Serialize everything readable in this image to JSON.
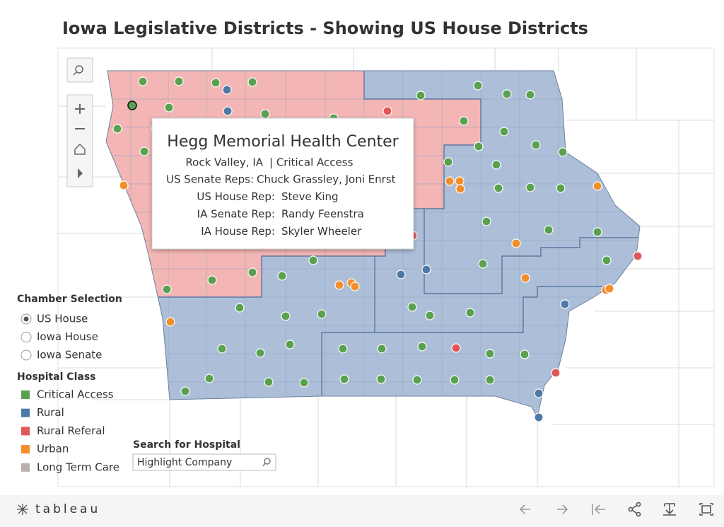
{
  "title": "Iowa Legislative Districts - Showing US House Districts",
  "tooltip": {
    "name": "Hegg Memorial Health Center",
    "location": "Rock Valley, IA",
    "class": "| Critical Access",
    "rows": [
      {
        "label": "US Senate Reps:",
        "value": "Chuck Grassley, Joni Enrst"
      },
      {
        "label": "US House Rep:",
        "value": "Steve King"
      },
      {
        "label": "IA Senate Rep:",
        "value": "Randy Feenstra"
      },
      {
        "label": "IA House Rep:",
        "value": "Skyler Wheeler"
      }
    ]
  },
  "chamber_selection": {
    "title": "Chamber Selection",
    "options": [
      "US House",
      "Iowa House",
      "Iowa Senate"
    ],
    "selected": 0
  },
  "hospital_class": {
    "title": "Hospital Class",
    "items": [
      {
        "label": "Critical Access",
        "color": "#59a14f"
      },
      {
        "label": "Rural",
        "color": "#4e79a7"
      },
      {
        "label": "Rural Referal",
        "color": "#e15759"
      },
      {
        "label": "Urban",
        "color": "#f28e2b"
      },
      {
        "label": "Long Term Care",
        "color": "#bab0ac"
      }
    ]
  },
  "search": {
    "label": "Search for Hospital",
    "placeholder": "Highlight Company"
  },
  "footer": {
    "logo": "tableau"
  }
}
